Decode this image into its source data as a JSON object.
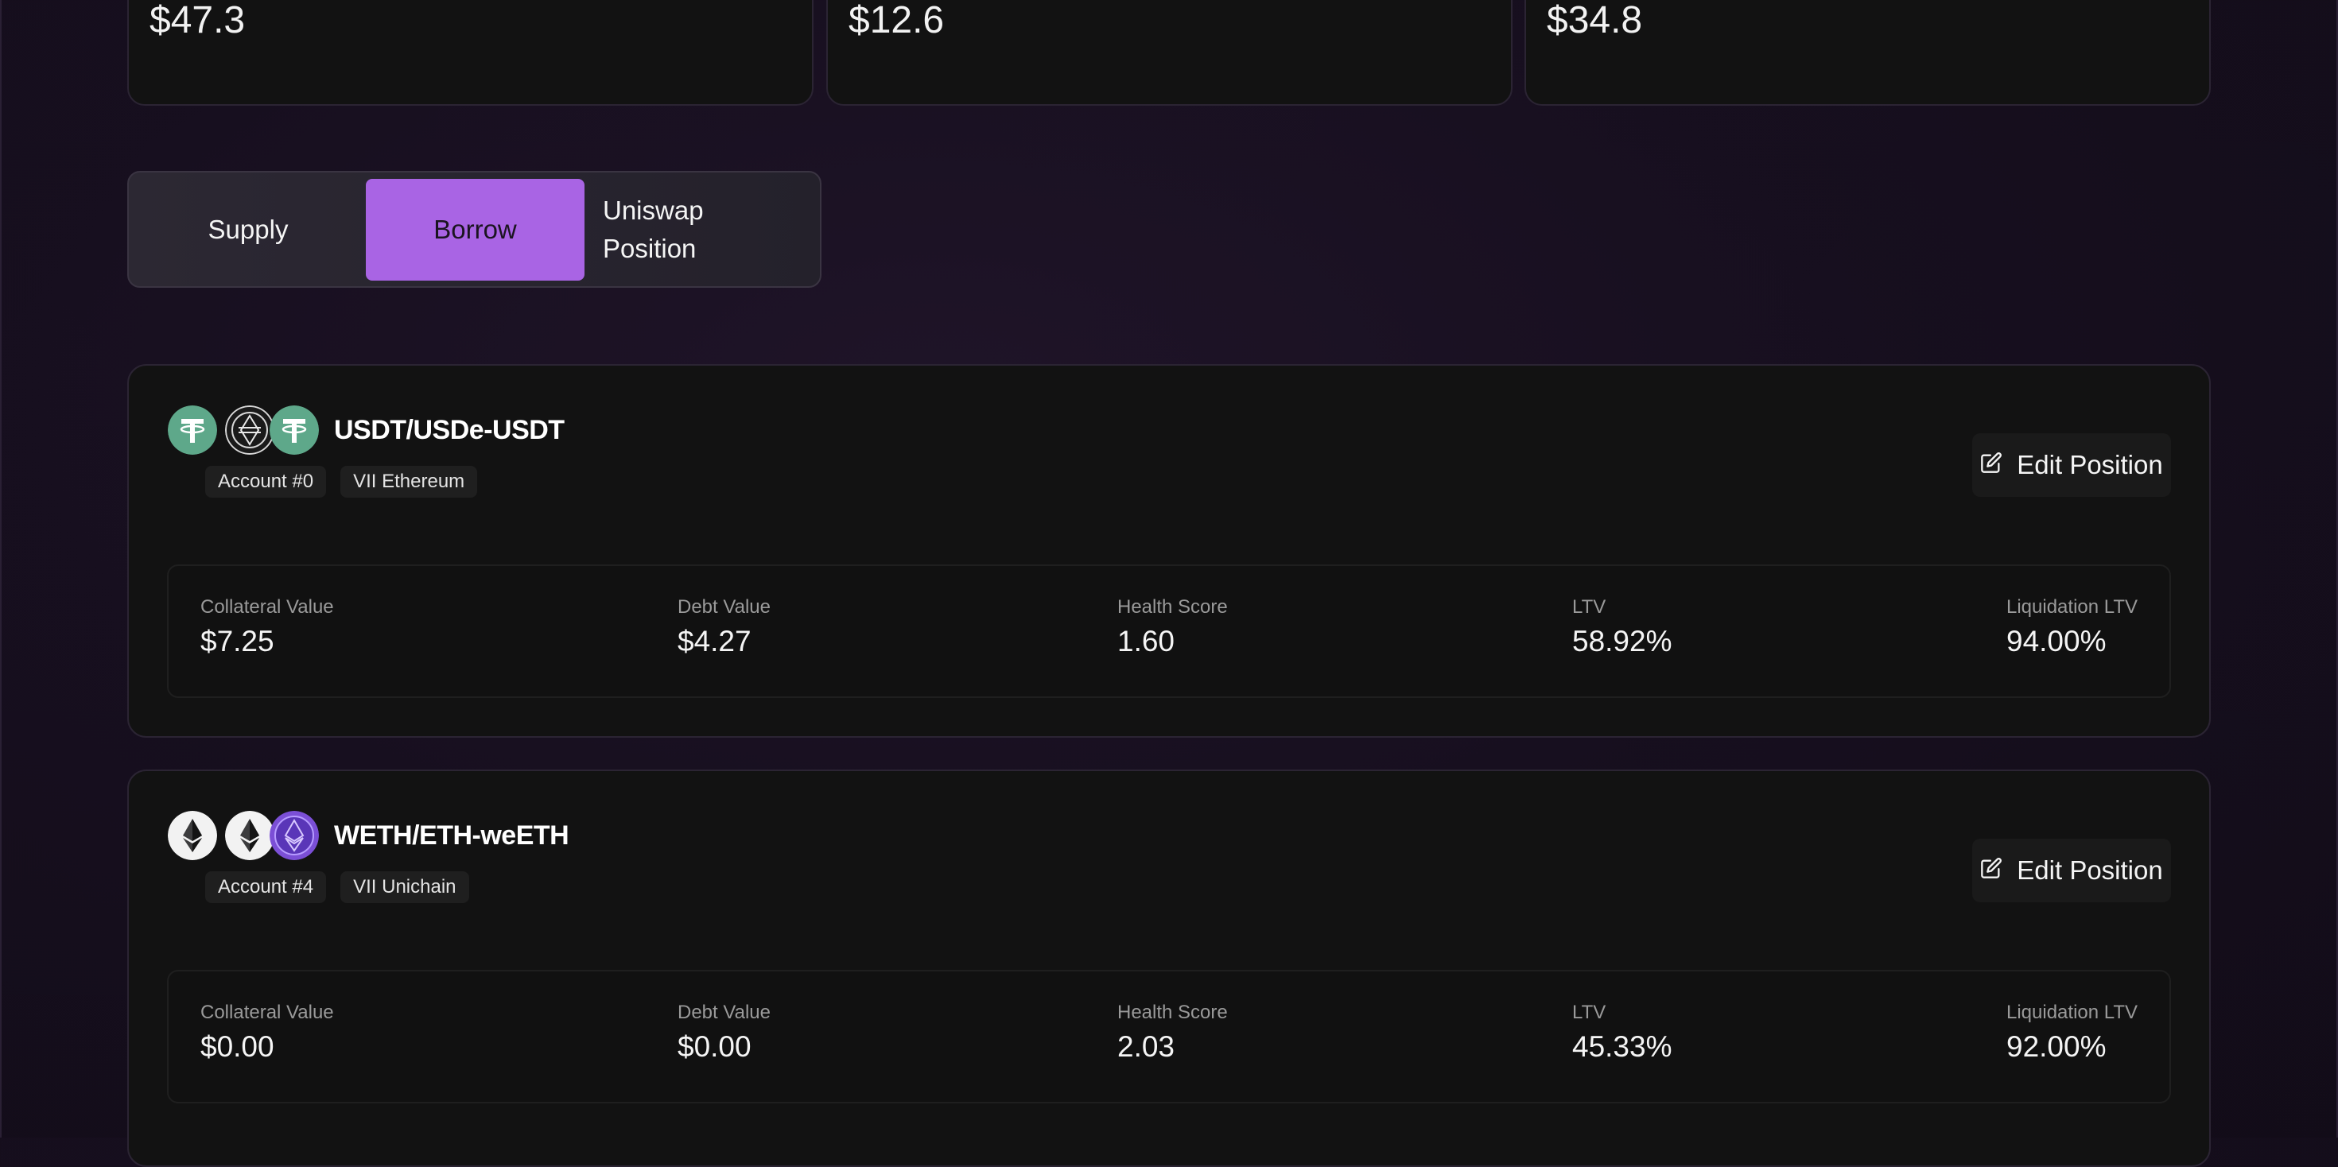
{
  "summary": [
    {
      "value": "$47.3"
    },
    {
      "value": "$12.6"
    },
    {
      "value": "$34.8"
    }
  ],
  "tabs": [
    {
      "label": "Supply",
      "active": false
    },
    {
      "label": "Borrow",
      "active": true
    },
    {
      "label": "Uniswap Position",
      "active": false
    }
  ],
  "positions": [
    {
      "title": "USDT/USDe-USDT",
      "tokens": [
        "usdt-icon",
        "usde-icon",
        "usdt-icon"
      ],
      "badges": [
        "Account #0",
        "VII Ethereum"
      ],
      "edit_label": "Edit Position",
      "stats": [
        {
          "label": "Collateral Value",
          "value": "$7.25"
        },
        {
          "label": "Debt Value",
          "value": "$4.27"
        },
        {
          "label": "Health Score",
          "value": "1.60"
        },
        {
          "label": "LTV",
          "value": "58.92%"
        },
        {
          "label": "Liquidation LTV",
          "value": "94.00%"
        }
      ]
    },
    {
      "title": "WETH/ETH-weETH",
      "tokens": [
        "weth-icon",
        "eth-icon",
        "weeth-icon"
      ],
      "badges": [
        "Account #4",
        "VII Unichain"
      ],
      "edit_label": "Edit Position",
      "stats": [
        {
          "label": "Collateral Value",
          "value": "$0.00"
        },
        {
          "label": "Debt Value",
          "value": "$0.00"
        },
        {
          "label": "Health Score",
          "value": "2.03"
        },
        {
          "label": "LTV",
          "value": "45.33%"
        },
        {
          "label": "Liquidation LTV",
          "value": "92.00%"
        }
      ]
    }
  ],
  "colors": {
    "accent": "#a964e4",
    "card_bg": "#121212",
    "page_bg": "#170f1f",
    "usdt_green": "#5ea88a"
  }
}
